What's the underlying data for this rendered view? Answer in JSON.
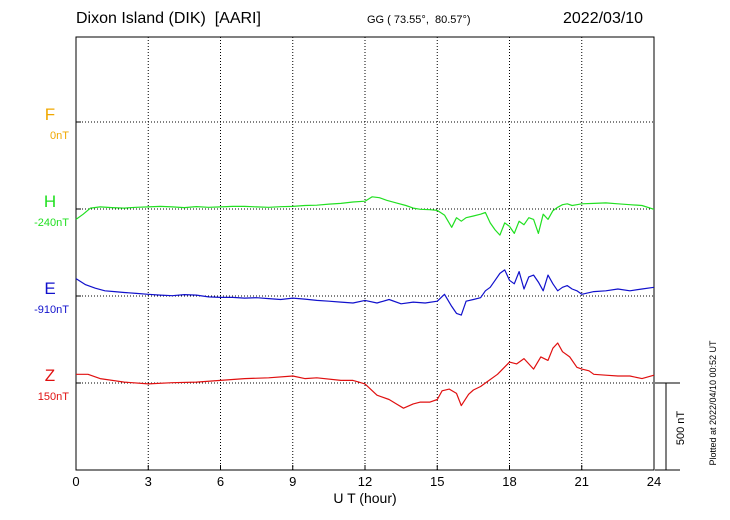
{
  "header": {
    "station": "Dixon Island (DIK)  [AARI]",
    "coords": "GG ( 73.55°,  80.57°)",
    "date": "2022/03/10"
  },
  "footer": {
    "plotted": "Plotted at 2022/04/10 00:52 UT"
  },
  "chart_data": {
    "type": "line",
    "title": "Dixon Island (DIK)  [AARI]",
    "xlabel": "U T (hour)",
    "ylabel": "",
    "xlim": [
      0,
      24
    ],
    "x_ticks": [
      0,
      3,
      6,
      9,
      12,
      15,
      18,
      21,
      24
    ],
    "scale_bar": {
      "label": "500 nT",
      "value_nT": 500
    },
    "grid": true,
    "colors": {
      "F": "#f0a800",
      "H": "#22e022",
      "E": "#1111cc",
      "Z": "#e01010"
    },
    "channels": [
      {
        "name": "F",
        "baseline": "0nT",
        "color": "#f0a800"
      },
      {
        "name": "H",
        "baseline": "-240nT",
        "color": "#22e022"
      },
      {
        "name": "E",
        "baseline": "-910nT",
        "color": "#1111cc"
      },
      {
        "name": "Z",
        "baseline": "150nT",
        "color": "#e01010"
      }
    ],
    "series": [
      {
        "name": "H",
        "x": [
          0,
          0.3,
          0.6,
          1,
          1.5,
          2,
          2.5,
          3,
          3.5,
          4,
          4.5,
          5,
          5.5,
          6,
          6.5,
          7,
          7.5,
          8,
          8.5,
          9,
          9.5,
          10,
          10.5,
          11,
          11.5,
          12,
          12.3,
          12.6,
          12.9,
          13.3,
          13.7,
          14,
          14.3,
          14.7,
          15,
          15.3,
          15.6,
          15.8,
          16,
          16.2,
          16.5,
          16.8,
          17,
          17.2,
          17.4,
          17.6,
          17.8,
          18,
          18.2,
          18.4,
          18.6,
          18.8,
          19,
          19.2,
          19.4,
          19.6,
          19.8,
          20,
          20.2,
          20.4,
          20.6,
          20.8,
          21,
          21.5,
          22,
          22.5,
          23,
          23.5,
          24
        ],
        "values": [
          -300,
          -270,
          -235,
          -228,
          -232,
          -235,
          -230,
          -228,
          -225,
          -228,
          -232,
          -226,
          -230,
          -228,
          -225,
          -225,
          -228,
          -230,
          -227,
          -225,
          -220,
          -218,
          -212,
          -208,
          -200,
          -195,
          -170,
          -175,
          -190,
          -205,
          -220,
          -235,
          -242,
          -244,
          -248,
          -275,
          -345,
          -290,
          -310,
          -290,
          -280,
          -270,
          -260,
          -320,
          -360,
          -390,
          -320,
          -340,
          -380,
          -310,
          -330,
          -290,
          -300,
          -380,
          -270,
          -300,
          -250,
          -230,
          -215,
          -210,
          -220,
          -215,
          -210,
          -208,
          -205,
          -210,
          -215,
          -220,
          -242
        ]
      },
      {
        "name": "E",
        "x": [
          0,
          0.4,
          0.8,
          1.2,
          1.6,
          2,
          2.5,
          3,
          3.5,
          4,
          4.5,
          5,
          5.5,
          6,
          6.5,
          7,
          7.5,
          8,
          8.5,
          9,
          9.5,
          10,
          10.5,
          11,
          11.5,
          12,
          12.5,
          13,
          13.5,
          14,
          14.5,
          15,
          15.3,
          15.6,
          15.8,
          16,
          16.2,
          16.5,
          16.8,
          17,
          17.2,
          17.4,
          17.6,
          17.8,
          18,
          18.2,
          18.4,
          18.6,
          18.8,
          19,
          19.2,
          19.4,
          19.6,
          19.8,
          20,
          20.2,
          20.4,
          20.6,
          20.8,
          21,
          21.5,
          22,
          22.5,
          23,
          23.5,
          24
        ],
        "values": [
          -810,
          -845,
          -865,
          -880,
          -885,
          -890,
          -895,
          -900,
          -905,
          -908,
          -902,
          -905,
          -915,
          -918,
          -918,
          -922,
          -920,
          -925,
          -930,
          -922,
          -928,
          -935,
          -940,
          -945,
          -950,
          -935,
          -950,
          -930,
          -955,
          -945,
          -950,
          -940,
          -900,
          -970,
          -1010,
          -1020,
          -940,
          -930,
          -920,
          -880,
          -860,
          -820,
          -780,
          -760,
          -820,
          -840,
          -770,
          -870,
          -800,
          -790,
          -830,
          -880,
          -790,
          -840,
          -880,
          -860,
          -850,
          -870,
          -880,
          -900,
          -885,
          -880,
          -870,
          -880,
          -870,
          -860
        ]
      },
      {
        "name": "Z",
        "x": [
          0,
          0.5,
          1,
          2,
          3,
          4,
          5,
          6,
          7,
          8,
          9,
          9.5,
          10,
          11,
          11.5,
          12,
          12.5,
          13,
          13.3,
          13.6,
          14,
          14.3,
          14.7,
          15,
          15.2,
          15.5,
          15.8,
          16,
          16.3,
          16.5,
          16.8,
          17,
          17.5,
          18,
          18.3,
          18.6,
          19,
          19.3,
          19.6,
          19.8,
          20,
          20.2,
          20.5,
          20.8,
          21,
          21.3,
          21.5,
          22,
          22.5,
          23,
          23.5,
          24
        ],
        "values": [
          200,
          200,
          175,
          155,
          145,
          152,
          155,
          165,
          175,
          180,
          190,
          175,
          180,
          165,
          165,
          145,
          80,
          55,
          30,
          5,
          30,
          40,
          40,
          55,
          105,
          115,
          90,
          20,
          85,
          110,
          130,
          150,
          200,
          270,
          260,
          290,
          230,
          300,
          280,
          350,
          380,
          330,
          300,
          240,
          230,
          220,
          200,
          195,
          190,
          190,
          175,
          195
        ]
      }
    ]
  }
}
